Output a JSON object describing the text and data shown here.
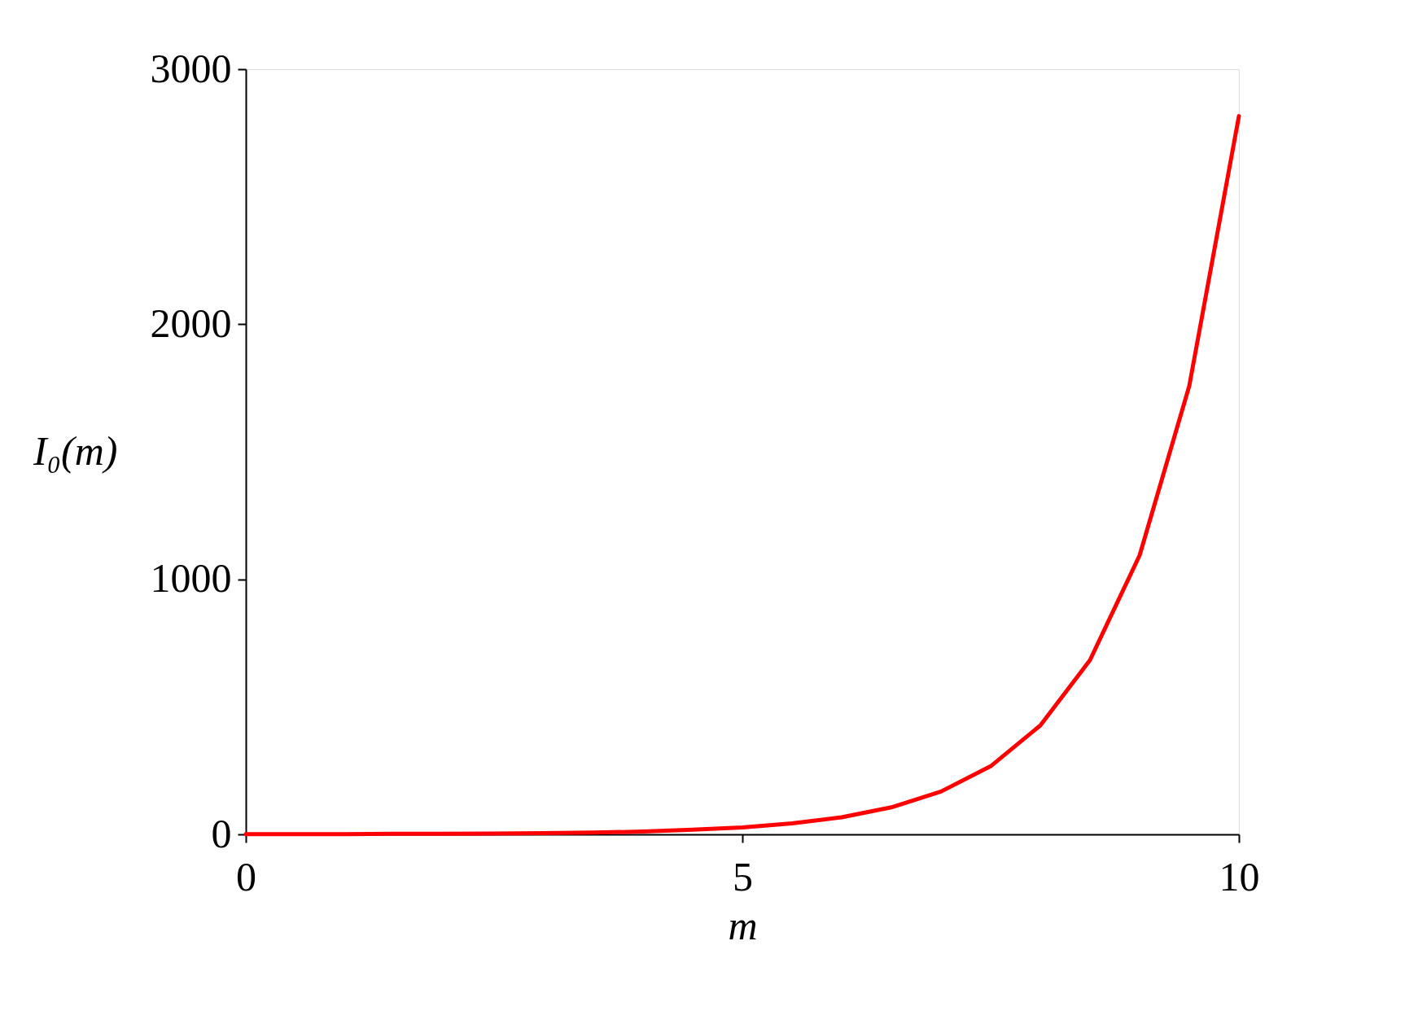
{
  "chart_data": {
    "type": "line",
    "xlabel": "m",
    "ylabel": "I₀(m)",
    "x": [
      0,
      0.5,
      1,
      1.5,
      2,
      2.5,
      3,
      3.5,
      4,
      4.5,
      5,
      5.5,
      6,
      6.5,
      7,
      7.5,
      8,
      8.5,
      9,
      9.5,
      10
    ],
    "series": [
      {
        "color": "#ff0000",
        "values": [
          1,
          1,
          1,
          2,
          2,
          3,
          5,
          7,
          11,
          18,
          27,
          43,
          67,
          106,
          168,
          267,
          427,
          683,
          1094,
          1758,
          2816
        ]
      }
    ],
    "xlim": [
      0,
      10
    ],
    "ylim": [
      0,
      3000
    ],
    "xticks": [
      0,
      5,
      10
    ],
    "yticks": [
      0,
      1000,
      2000,
      3000
    ],
    "grid": false,
    "marker": "none",
    "line_style": "solid"
  }
}
